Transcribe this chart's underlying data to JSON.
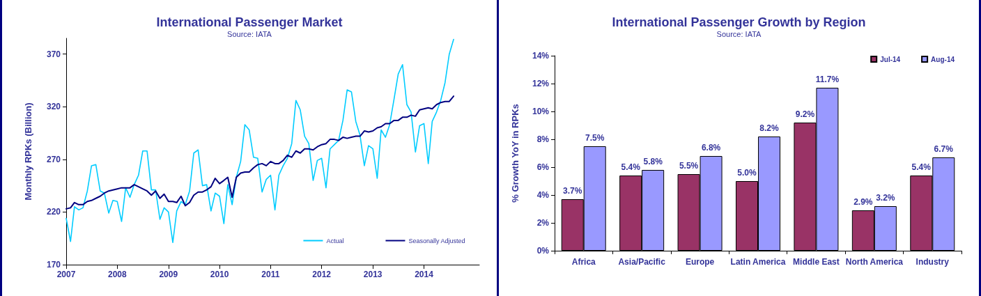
{
  "chart_data": [
    {
      "type": "line",
      "title": "International Passenger Market",
      "subtitle": "Source: IATA",
      "ylabel": "Monthly RPKs (Billion)",
      "x": [
        "2007-01",
        "2007-02",
        "2007-03",
        "2007-04",
        "2007-05",
        "2007-06",
        "2007-07",
        "2007-08",
        "2007-09",
        "2007-10",
        "2007-11",
        "2007-12",
        "2008-01",
        "2008-02",
        "2008-03",
        "2008-04",
        "2008-05",
        "2008-06",
        "2008-07",
        "2008-08",
        "2008-09",
        "2008-10",
        "2008-11",
        "2008-12",
        "2009-01",
        "2009-02",
        "2009-03",
        "2009-04",
        "2009-05",
        "2009-06",
        "2009-07",
        "2009-08",
        "2009-09",
        "2009-10",
        "2009-11",
        "2009-12",
        "2010-01",
        "2010-02",
        "2010-03",
        "2010-04",
        "2010-05",
        "2010-06",
        "2010-07",
        "2010-08",
        "2010-09",
        "2010-10",
        "2010-11",
        "2010-12",
        "2011-01",
        "2011-02",
        "2011-03",
        "2011-04",
        "2011-05",
        "2011-06",
        "2011-07",
        "2011-08",
        "2011-09",
        "2011-10",
        "2011-11",
        "2011-12",
        "2012-01",
        "2012-02",
        "2012-03",
        "2012-04",
        "2012-05",
        "2012-06",
        "2012-07",
        "2012-08",
        "2012-09",
        "2012-10",
        "2012-11",
        "2012-12",
        "2013-01",
        "2013-02",
        "2013-03",
        "2013-04",
        "2013-05",
        "2013-06",
        "2013-07",
        "2013-08",
        "2013-09",
        "2013-10",
        "2013-11",
        "2013-12",
        "2014-01",
        "2014-02",
        "2014-03",
        "2014-04",
        "2014-05",
        "2014-06",
        "2014-07",
        "2014-08"
      ],
      "series": [
        {
          "name": "Actual",
          "color": "#00ccff",
          "values": [
            214,
            192,
            225,
            222,
            224,
            240,
            264,
            265,
            240,
            238,
            219,
            231,
            230,
            211,
            243,
            234,
            246,
            255,
            278,
            278,
            241,
            241,
            213,
            224,
            220,
            191,
            221,
            230,
            227,
            240,
            276,
            279,
            245,
            246,
            221,
            238,
            235,
            209,
            246,
            227,
            253,
            268,
            303,
            298,
            272,
            271,
            239,
            251,
            255,
            222,
            255,
            264,
            271,
            285,
            326,
            317,
            292,
            285,
            250,
            269,
            271,
            243,
            280,
            284,
            288,
            307,
            336,
            334,
            306,
            293,
            264,
            283,
            280,
            252,
            298,
            291,
            303,
            327,
            351,
            360,
            322,
            315,
            277,
            302,
            304,
            266,
            306,
            315,
            326,
            343,
            370,
            384
          ]
        },
        {
          "name": "Seasonally Adjusted",
          "color": "#000080",
          "values": [
            223,
            224,
            229,
            227,
            227,
            230,
            231,
            233,
            235,
            238,
            240,
            241,
            242,
            243,
            243,
            243,
            246,
            244,
            242,
            240,
            236,
            240,
            233,
            237,
            230,
            230,
            229,
            235,
            226,
            229,
            236,
            239,
            239,
            241,
            244,
            252,
            247,
            250,
            253,
            234,
            253,
            257,
            258,
            258,
            262,
            265,
            266,
            264,
            268,
            266,
            266,
            269,
            274,
            272,
            278,
            276,
            280,
            280,
            279,
            282,
            284,
            285,
            289,
            289,
            288,
            291,
            290,
            291,
            292,
            292,
            297,
            296,
            297,
            300,
            301,
            304,
            304,
            307,
            307,
            310,
            310,
            312,
            311,
            317,
            318,
            319,
            318,
            322,
            324,
            325,
            325,
            330
          ]
        }
      ],
      "xlim": [
        "2007-01",
        "2015-02"
      ],
      "xticks": [
        {
          "value": "2007-01",
          "label": "2007"
        },
        {
          "value": "2008-01",
          "label": "2008"
        },
        {
          "value": "2009-01",
          "label": "2009"
        },
        {
          "value": "2010-01",
          "label": "2010"
        },
        {
          "value": "2011-01",
          "label": "2011"
        },
        {
          "value": "2012-01",
          "label": "2012"
        },
        {
          "value": "2013-01",
          "label": "2013"
        },
        {
          "value": "2014-01",
          "label": "2014"
        }
      ],
      "ylim": [
        170,
        385
      ],
      "yticks": [
        170,
        220,
        270,
        320,
        370
      ],
      "grid": false,
      "legend": "bottom right",
      "marker": "none",
      "line_style": "solid"
    },
    {
      "type": "bar",
      "title": "International Passenger Growth by Region",
      "subtitle": "Source: IATA",
      "ylabel": "% Growth YoY in RPKs",
      "categories": [
        "Africa",
        "Asia/Pacific",
        "Europe",
        "Latin America",
        "Middle East",
        "North America",
        "Industry"
      ],
      "series": [
        {
          "name": "Jul-14",
          "color": "#993366",
          "values": [
            3.7,
            5.4,
            5.5,
            5.0,
            9.2,
            2.9,
            5.4
          ],
          "value_labels": [
            "3.7%",
            "5.4%",
            "5.5%",
            "5.0%",
            "9.2%",
            "2.9%",
            "5.4%"
          ]
        },
        {
          "name": "Aug-14",
          "color": "#9999ff",
          "values": [
            7.5,
            5.8,
            6.8,
            8.2,
            11.7,
            3.2,
            6.7
          ],
          "value_labels": [
            "7.5%",
            "5.8%",
            "6.8%",
            "8.2%",
            "11.7%",
            "3.2%",
            "6.7%"
          ]
        }
      ],
      "ylim": [
        0,
        14
      ],
      "yticks": [
        {
          "value": 0,
          "label": "0%"
        },
        {
          "value": 2,
          "label": "2%"
        },
        {
          "value": 4,
          "label": "4%"
        },
        {
          "value": 6,
          "label": "6%"
        },
        {
          "value": 8,
          "label": "8%"
        },
        {
          "value": 10,
          "label": "10%"
        },
        {
          "value": 12,
          "label": "12%"
        },
        {
          "value": 14,
          "label": "14%"
        }
      ],
      "grid": false,
      "legend": "top right"
    }
  ]
}
